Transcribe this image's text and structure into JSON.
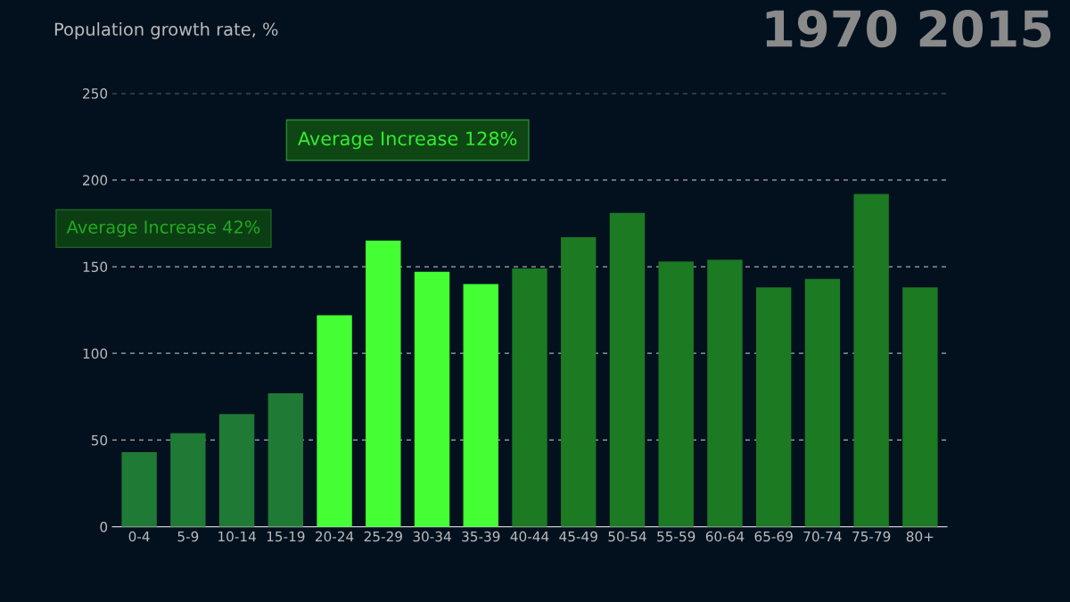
{
  "chart_data": {
    "type": "bar",
    "ylabel": "Population growth rate, %",
    "categories": [
      "0-4",
      "5-9",
      "10-14",
      "15-19",
      "20-24",
      "25-29",
      "30-34",
      "35-39",
      "40-44",
      "45-49",
      "50-54",
      "55-59",
      "60-64",
      "65-69",
      "70-74",
      "75-79",
      "80+"
    ],
    "values": [
      43,
      54,
      65,
      77,
      122,
      165,
      147,
      140,
      149,
      167,
      181,
      153,
      154,
      138,
      143,
      192,
      138
    ],
    "colors": [
      "#1f7a35",
      "#1f7a35",
      "#1f7a35",
      "#1f7a35",
      "#44ff33",
      "#44ff33",
      "#44ff33",
      "#44ff33",
      "#1b7a22",
      "#1b7a22",
      "#1b7a22",
      "#1b7a22",
      "#1b7a22",
      "#1b7a22",
      "#1b7a22",
      "#1b7a22",
      "#1b7a22"
    ],
    "ylim": [
      0,
      250
    ],
    "yticks": [
      0,
      50,
      100,
      150,
      200,
      250
    ],
    "grid": "y",
    "annotations": [
      "1970 2015",
      "Average Increase 42%",
      "Average Increase 128%"
    ]
  }
}
